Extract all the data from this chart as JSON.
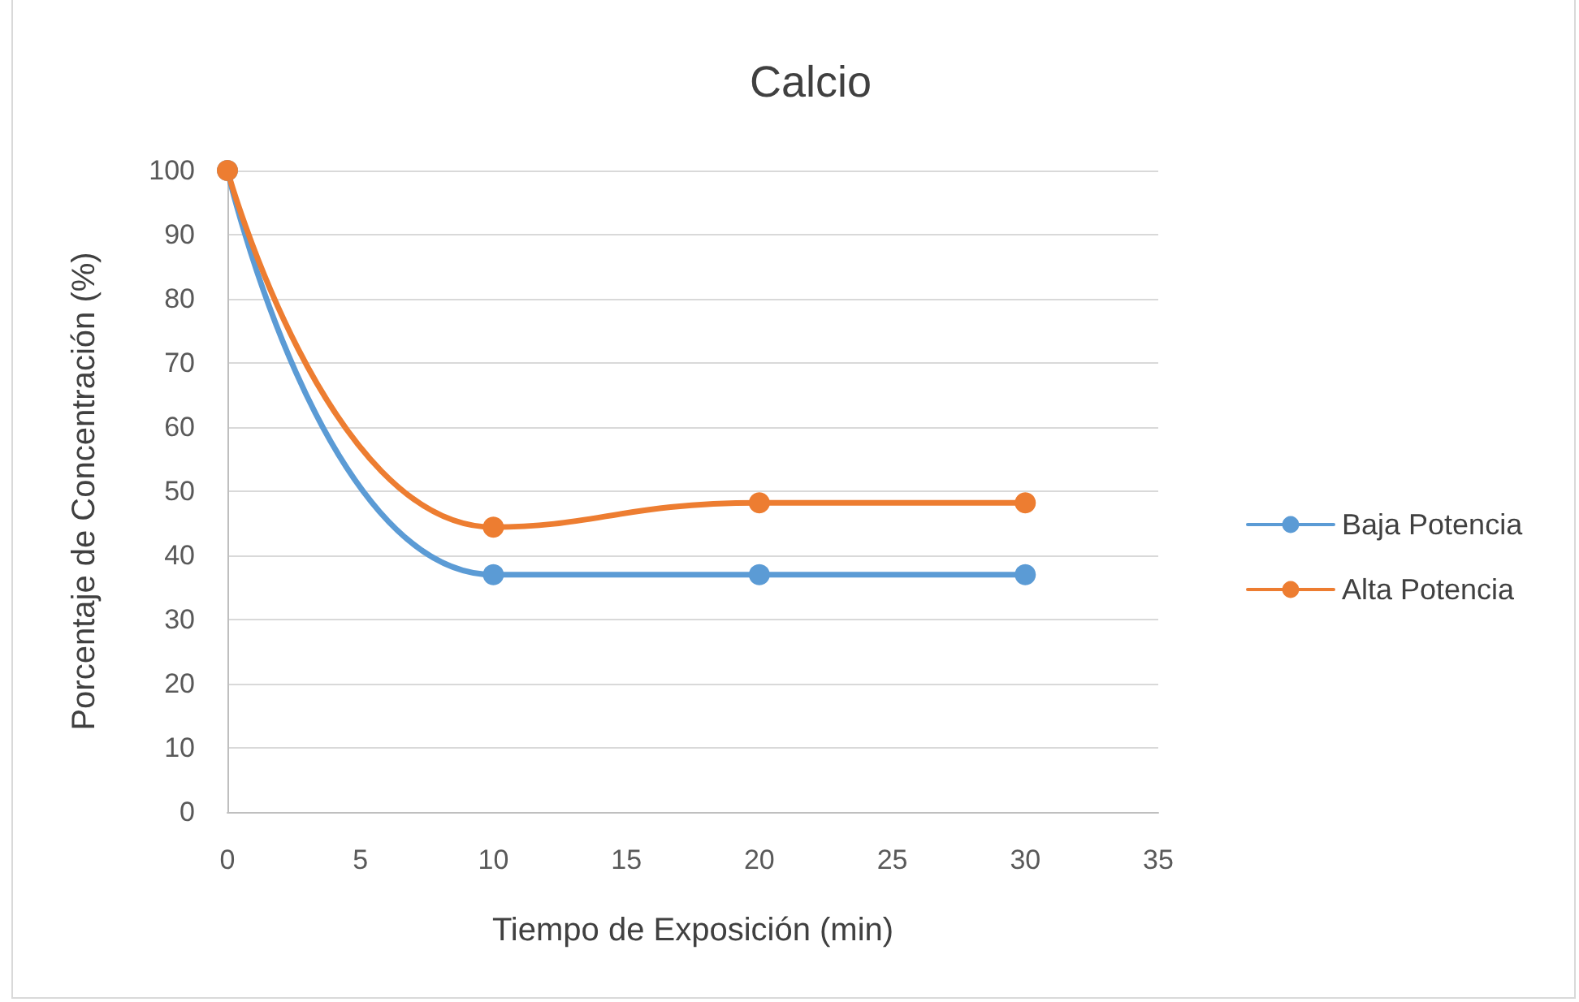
{
  "chart_data": {
    "type": "line",
    "title": "Calcio",
    "xlabel": "Tiempo de Exposición (min)",
    "ylabel": "Porcentaje de Concentración (%)",
    "x": [
      0,
      10,
      20,
      30
    ],
    "series": [
      {
        "name": "Baja Potencia",
        "color": "#5b9bd5",
        "values": [
          100,
          37,
          37,
          37
        ]
      },
      {
        "name": "Alta Potencia",
        "color": "#ed7d31",
        "values": [
          100,
          44.4,
          48.2,
          48.2
        ]
      }
    ],
    "xlim": [
      0,
      35
    ],
    "xticks": [
      0,
      5,
      10,
      15,
      20,
      25,
      30,
      35
    ],
    "ylim": [
      0,
      100
    ],
    "yticks": [
      0,
      10,
      20,
      30,
      40,
      50,
      60,
      70,
      80,
      90,
      100
    ],
    "grid": "y",
    "legend": "right",
    "marker": "circle",
    "line_style": "solid"
  }
}
